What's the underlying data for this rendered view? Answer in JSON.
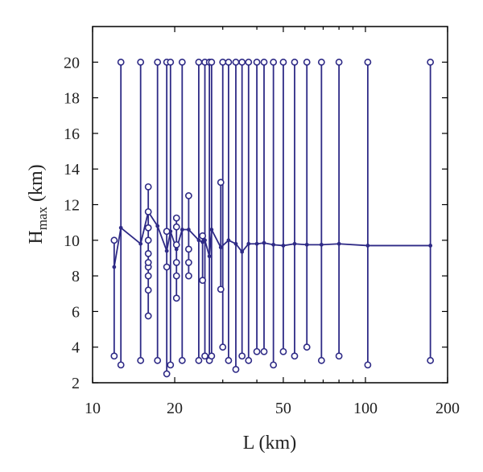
{
  "chart_data": {
    "type": "line",
    "xscale": "log",
    "xlim": [
      10,
      200
    ],
    "ylim": [
      2,
      22
    ],
    "xticks": [
      10,
      20,
      50,
      100,
      200
    ],
    "xtick_labels": [
      "10",
      "20",
      "50",
      "100",
      "200"
    ],
    "yticks": [
      2,
      4,
      6,
      8,
      10,
      12,
      14,
      16,
      18,
      20
    ],
    "ytick_labels": [
      "2",
      "4",
      "6",
      "8",
      "10",
      "12",
      "14",
      "16",
      "18",
      "20"
    ],
    "xlabel": "L (km)",
    "ylabel_main": "H",
    "ylabel_sub": "max",
    "ylabel_unit": " (km)",
    "grid": false,
    "color": "#2e2a86",
    "series": [
      {
        "values": [
          {
            "x": 12.0,
            "y": 8.5
          },
          {
            "x": 12.7,
            "y": 10.7
          },
          {
            "x": 15.0,
            "y": 9.8
          },
          {
            "x": 16.0,
            "y": 11.6
          },
          {
            "x": 17.3,
            "y": 10.8
          },
          {
            "x": 18.7,
            "y": 9.4
          },
          {
            "x": 19.3,
            "y": 10.5
          },
          {
            "x": 20.3,
            "y": 9.5
          },
          {
            "x": 21.3,
            "y": 10.6
          },
          {
            "x": 22.5,
            "y": 10.6
          },
          {
            "x": 24.5,
            "y": 10.0
          },
          {
            "x": 25.3,
            "y": 9.9
          },
          {
            "x": 25.8,
            "y": 10.0
          },
          {
            "x": 26.8,
            "y": 9.1
          },
          {
            "x": 27.3,
            "y": 10.6
          },
          {
            "x": 29.5,
            "y": 9.6
          },
          {
            "x": 31.5,
            "y": 10.0
          },
          {
            "x": 33.5,
            "y": 9.8
          },
          {
            "x": 35.3,
            "y": 9.35
          },
          {
            "x": 37.3,
            "y": 9.8
          },
          {
            "x": 40.0,
            "y": 9.8
          },
          {
            "x": 42.5,
            "y": 9.85
          },
          {
            "x": 46.0,
            "y": 9.75
          },
          {
            "x": 50.0,
            "y": 9.7
          },
          {
            "x": 55.0,
            "y": 9.8
          },
          {
            "x": 61.0,
            "y": 9.75
          },
          {
            "x": 69.0,
            "y": 9.75
          },
          {
            "x": 80.0,
            "y": 9.8
          },
          {
            "x": 102.0,
            "y": 9.7
          },
          {
            "x": 173.0,
            "y": 9.7
          }
        ]
      }
    ],
    "range_bars": [
      {
        "x": 12.0,
        "min": 3.5,
        "max": 10.0,
        "inner": []
      },
      {
        "x": 12.7,
        "min": 3.0,
        "max": 20.0,
        "inner": []
      },
      {
        "x": 15.0,
        "min": 3.25,
        "max": 20.0,
        "inner": []
      },
      {
        "x": 16.0,
        "min": 5.75,
        "max": 13.0,
        "inner": [
          7.2,
          8.0,
          8.5,
          8.75,
          9.25,
          10.0,
          10.7,
          11.6
        ]
      },
      {
        "x": 17.3,
        "min": 3.25,
        "max": 20.0,
        "inner": []
      },
      {
        "x": 18.7,
        "min": 2.5,
        "max": 20.0,
        "inner": [
          8.5,
          10.5
        ]
      },
      {
        "x": 19.3,
        "min": 3.0,
        "max": 20.0,
        "inner": []
      },
      {
        "x": 20.3,
        "min": 6.75,
        "max": 11.25,
        "inner": [
          8.0,
          8.75,
          9.75,
          10.75
        ]
      },
      {
        "x": 21.3,
        "min": 3.25,
        "max": 20.0,
        "inner": []
      },
      {
        "x": 22.5,
        "min": 8.0,
        "max": 12.5,
        "inner": [
          8.75,
          9.5
        ]
      },
      {
        "x": 24.5,
        "min": 3.25,
        "max": 20.0,
        "inner": []
      },
      {
        "x": 25.3,
        "min": 7.75,
        "max": 10.25,
        "inner": []
      },
      {
        "x": 25.8,
        "min": 3.5,
        "max": 20.0,
        "inner": []
      },
      {
        "x": 26.8,
        "min": 3.25,
        "max": 20.0,
        "inner": []
      },
      {
        "x": 27.3,
        "min": 3.5,
        "max": 20.0,
        "inner": []
      },
      {
        "x": 29.5,
        "min": 7.25,
        "max": 13.25,
        "inner": []
      },
      {
        "x": 30.0,
        "min": 4.0,
        "max": 20.0,
        "inner": []
      },
      {
        "x": 31.5,
        "min": 3.25,
        "max": 20.0,
        "inner": []
      },
      {
        "x": 33.5,
        "min": 2.75,
        "max": 20.0,
        "inner": []
      },
      {
        "x": 35.3,
        "min": 3.5,
        "max": 20.0,
        "inner": []
      },
      {
        "x": 37.3,
        "min": 3.25,
        "max": 20.0,
        "inner": []
      },
      {
        "x": 40.0,
        "min": 3.75,
        "max": 20.0,
        "inner": []
      },
      {
        "x": 42.5,
        "min": 3.75,
        "max": 20.0,
        "inner": []
      },
      {
        "x": 46.0,
        "min": 3.0,
        "max": 20.0,
        "inner": []
      },
      {
        "x": 50.0,
        "min": 3.75,
        "max": 20.0,
        "inner": []
      },
      {
        "x": 55.0,
        "min": 3.5,
        "max": 20.0,
        "inner": []
      },
      {
        "x": 61.0,
        "min": 4.0,
        "max": 20.0,
        "inner": []
      },
      {
        "x": 69.0,
        "min": 3.25,
        "max": 20.0,
        "inner": []
      },
      {
        "x": 80.0,
        "min": 3.5,
        "max": 20.0,
        "inner": []
      },
      {
        "x": 102.0,
        "min": 3.0,
        "max": 20.0,
        "inner": []
      },
      {
        "x": 173.0,
        "min": 3.25,
        "max": 20.0,
        "inner": []
      }
    ]
  }
}
